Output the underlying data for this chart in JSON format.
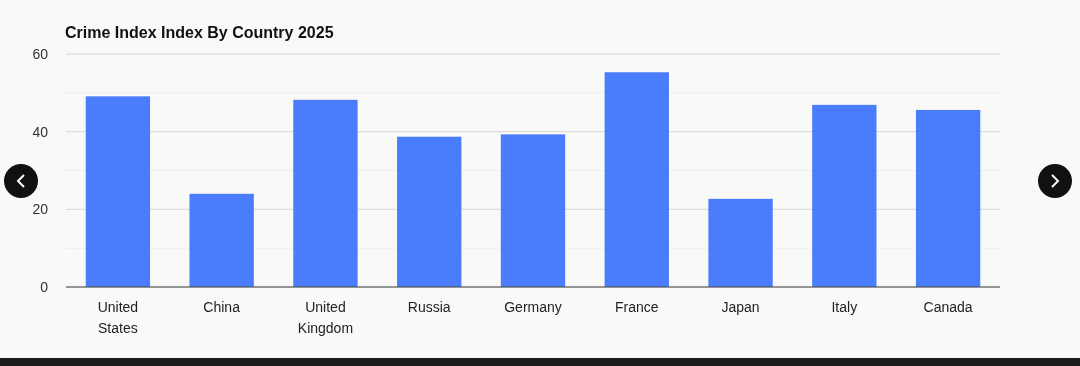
{
  "chart_data": {
    "type": "bar",
    "title": "Crime Index Index By Country 2025",
    "categories": [
      "United States",
      "China",
      "United Kingdom",
      "Russia",
      "Germany",
      "France",
      "Japan",
      "Italy",
      "Canada"
    ],
    "values": [
      49.1,
      24.0,
      48.2,
      38.7,
      39.3,
      55.3,
      22.7,
      46.9,
      45.6
    ],
    "color": "#4a7dfb",
    "ylim": [
      0,
      60
    ],
    "yticks": [
      0,
      {
        "value": 10,
        "label": null
      },
      20,
      {
        "value": 30,
        "label": null
      },
      40,
      {
        "value": 50,
        "label": null
      },
      60
    ],
    "grid": "y"
  }
}
